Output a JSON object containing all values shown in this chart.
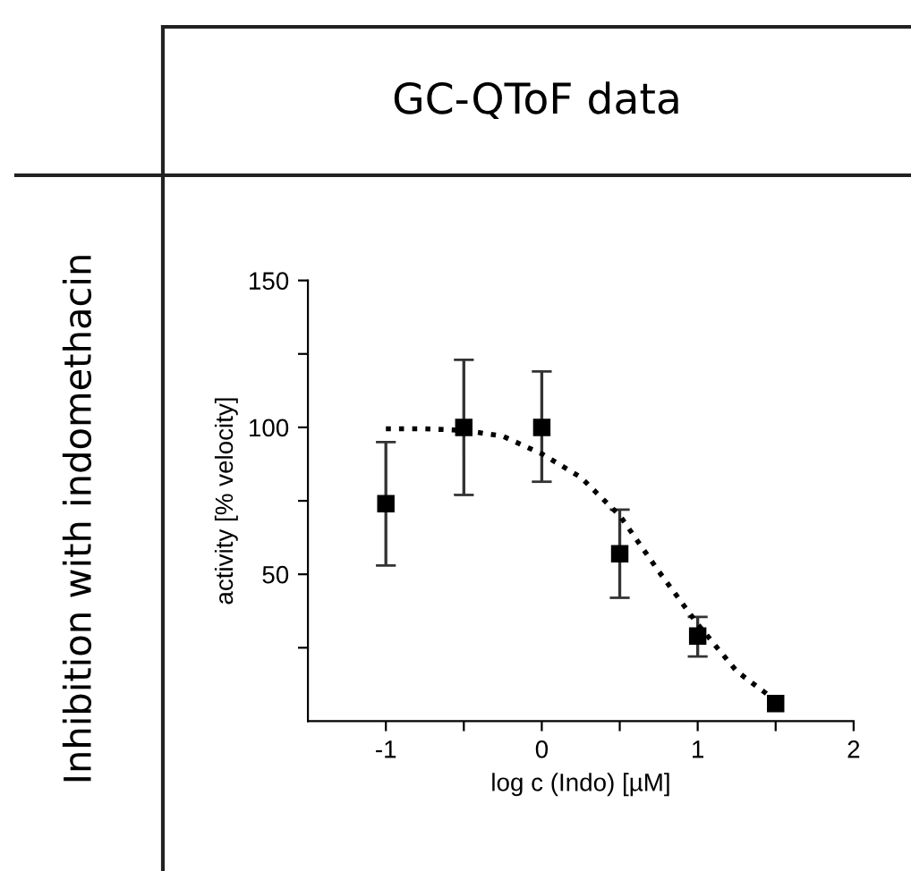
{
  "chart_data": {
    "type": "scatter",
    "title": "GC-QToF data",
    "annotations": [
      "Inhibition with indomethacin"
    ],
    "xlabel": "log c (Indo) [µM]",
    "ylabel": "activity [% velocity]",
    "series": [
      {
        "color": "#000000",
        "marker": "square",
        "x": [
          -1,
          -0.5,
          0,
          0.5,
          1,
          1.5
        ],
        "values": [
          74,
          100,
          100,
          57,
          29,
          6
        ],
        "errors": [
          [
            53,
            95
          ],
          [
            77,
            123
          ],
          [
            81.5,
            119
          ],
          [
            42,
            72
          ],
          [
            22,
            35.5
          ],
          null
        ]
      },
      {
        "type": "line",
        "color": "#000000",
        "marker": "none",
        "line_style": "dotted",
        "x": [
          -1,
          -0.75,
          -0.5,
          -0.25,
          0,
          0.25,
          0.5,
          0.75,
          1,
          1.25,
          1.5
        ],
        "values": [
          99.5,
          99.5,
          99,
          97,
          91,
          83,
          70,
          51,
          33,
          17,
          7
        ]
      }
    ],
    "xlim": [
      -1.5,
      2
    ],
    "xticks": [
      -1,
      {
        "value": -0.5,
        "label": null
      },
      0,
      {
        "value": 0.5,
        "label": null
      },
      1,
      {
        "value": 1.5,
        "label": null
      },
      2
    ],
    "ylim": [
      0,
      150
    ],
    "yticks": [
      {
        "value": 25,
        "label": null
      },
      50,
      {
        "value": 75,
        "label": null
      },
      100,
      {
        "value": 125,
        "label": null
      },
      150
    ],
    "grid": false,
    "legend": false
  }
}
